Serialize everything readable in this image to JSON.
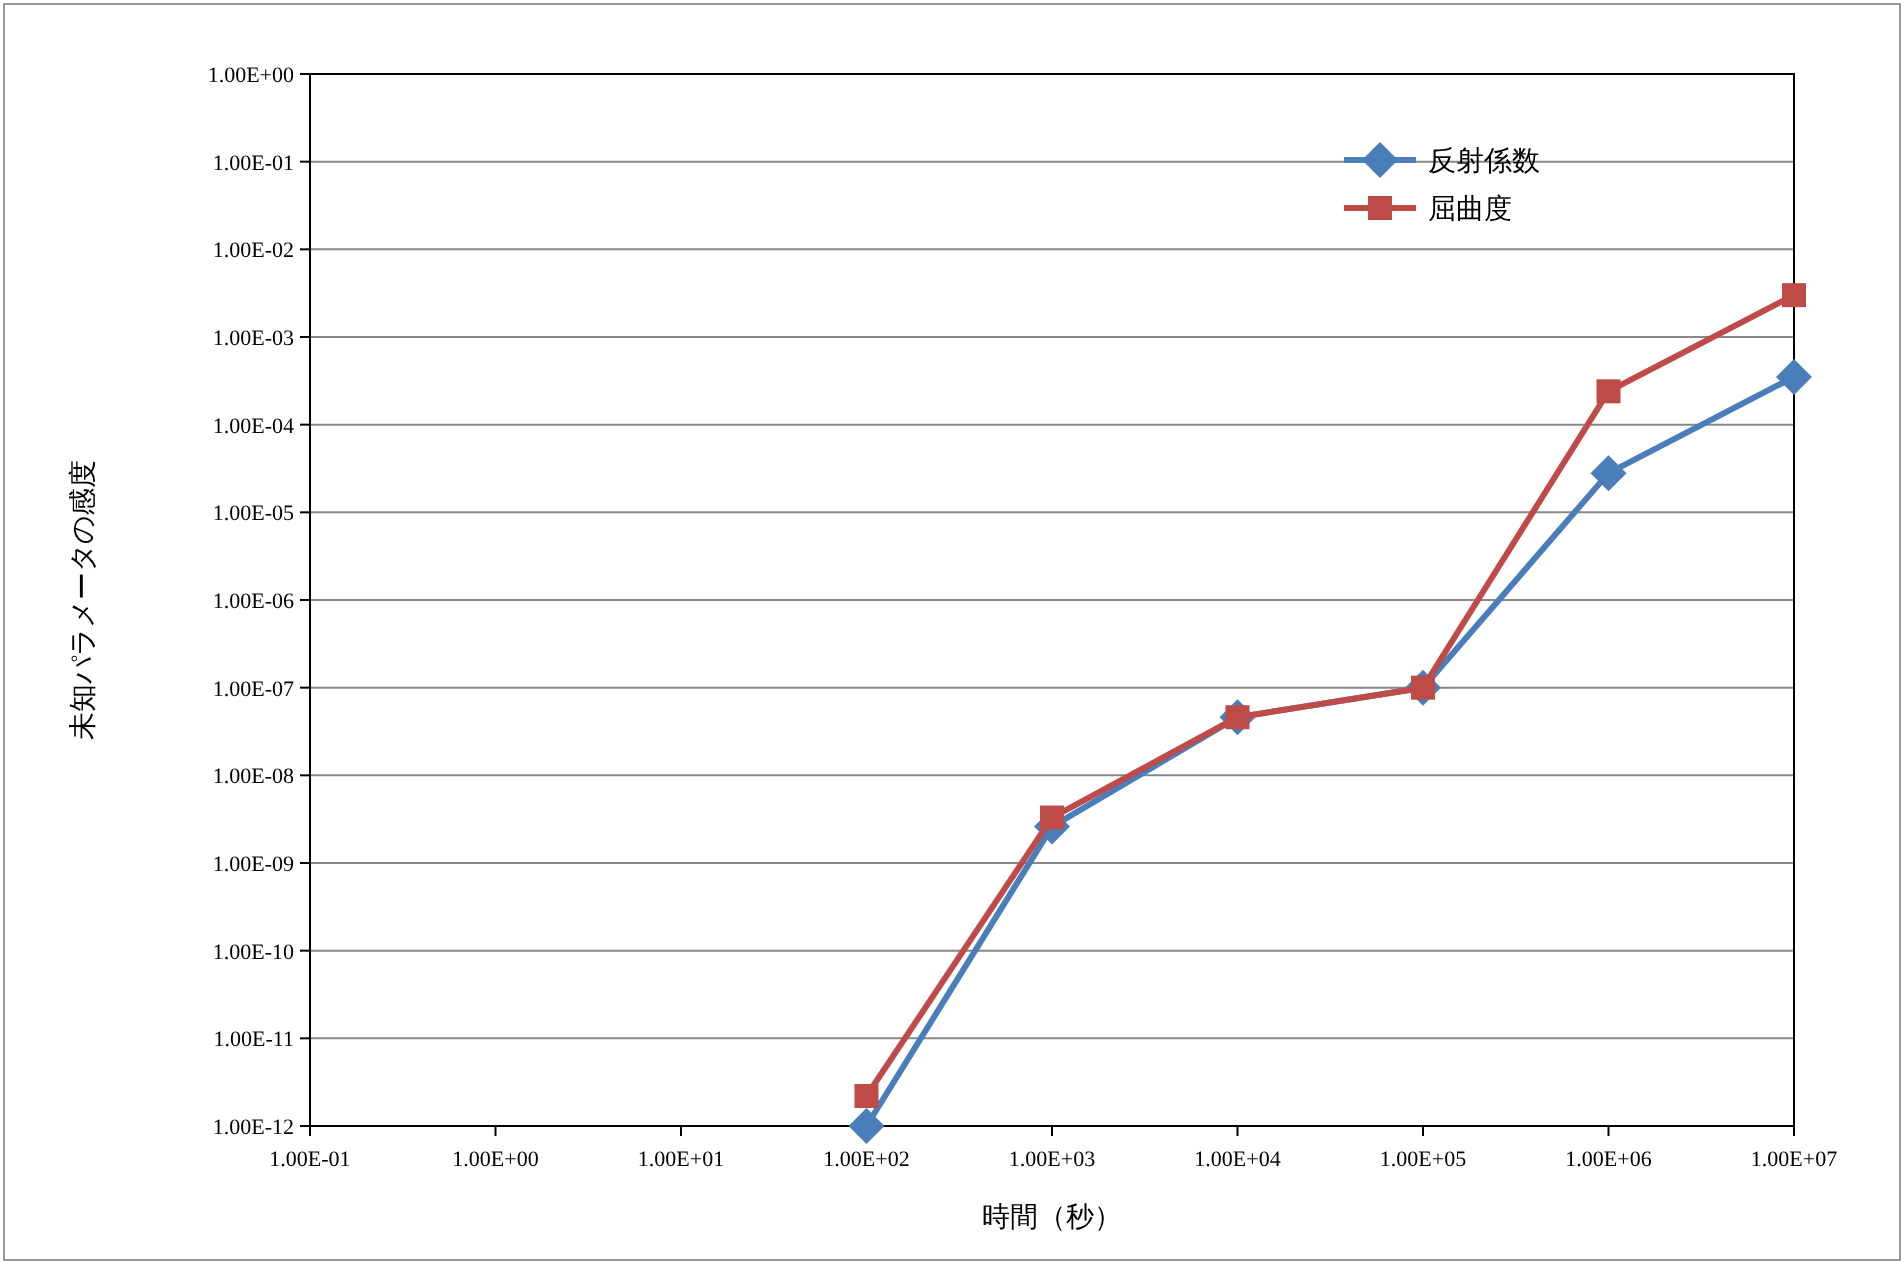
{
  "chart_data": {
    "type": "line",
    "xlabel": "時間（秒）",
    "ylabel": "未知パラメータの感度",
    "log": "xy",
    "grid": "y",
    "legend": "top right",
    "xlim": [
      0.1,
      10000000
    ],
    "xticks": [
      {
        "value": 0.1,
        "label": "1.00E-01"
      },
      {
        "value": 1,
        "label": "1.00E+00"
      },
      {
        "value": 10,
        "label": "1.00E+01"
      },
      {
        "value": 100,
        "label": "1.00E+02"
      },
      {
        "value": 1000,
        "label": "1.00E+03"
      },
      {
        "value": 10000,
        "label": "1.00E+04"
      },
      {
        "value": 100000,
        "label": "1.00E+05"
      },
      {
        "value": 1000000,
        "label": "1.00E+06"
      },
      {
        "value": 10000000,
        "label": "1.00E+07"
      }
    ],
    "ylim": [
      1e-12,
      1
    ],
    "yticks": [
      {
        "value": 1e-12,
        "label": "1.00E-12"
      },
      {
        "value": 1e-11,
        "label": "1.00E-11"
      },
      {
        "value": 1e-10,
        "label": "1.00E-10"
      },
      {
        "value": 1e-09,
        "label": "1.00E-09"
      },
      {
        "value": 1e-08,
        "label": "1.00E-08"
      },
      {
        "value": 1e-07,
        "label": "1.00E-07"
      },
      {
        "value": 1e-06,
        "label": "1.00E-06"
      },
      {
        "value": 1e-05,
        "label": "1.00E-05"
      },
      {
        "value": 0.0001,
        "label": "1.00E-04"
      },
      {
        "value": 0.001,
        "label": "1.00E-03"
      },
      {
        "value": 0.01,
        "label": "1.00E-02"
      },
      {
        "value": 0.1,
        "label": "1.00E-01"
      },
      {
        "value": 1,
        "label": "1.00E+00"
      }
    ],
    "x": [
      100,
      1000,
      10000,
      100000,
      1000000,
      10000000
    ],
    "series": [
      {
        "name": "反射係数",
        "color": "#4a7ebb",
        "marker": "diamond",
        "values": [
          1e-12,
          2.6e-09,
          4.6e-08,
          1e-07,
          2.8e-05,
          0.00035
        ]
      },
      {
        "name": "屈曲度",
        "color": "#be4b48",
        "marker": "square",
        "values": [
          2.2e-12,
          3.3e-09,
          4.6e-08,
          1e-07,
          0.00024,
          0.003
        ]
      }
    ]
  }
}
